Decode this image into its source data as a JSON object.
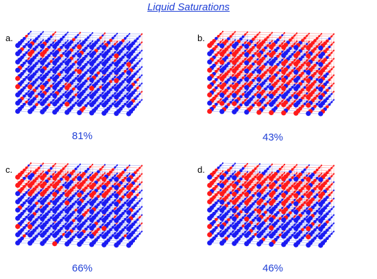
{
  "title": "Liquid Saturations",
  "colors": {
    "liquid": "#1b1bf2",
    "gas": "#ff1a1a",
    "line_blue": "#5a6cf0",
    "line_red": "#ff3030",
    "title": "#1f3fd6"
  },
  "panels": [
    {
      "label": "a.",
      "saturation": "81%",
      "liquid_fraction": 0.81,
      "distribution": "mostly-liquid"
    },
    {
      "label": "b.",
      "saturation": "43%",
      "liquid_fraction": 0.43,
      "distribution": "mixed-front"
    },
    {
      "label": "c.",
      "saturation": "66%",
      "liquid_fraction": 0.66,
      "distribution": "gas-top"
    },
    {
      "label": "d.",
      "saturation": "46%",
      "liquid_fraction": 0.46,
      "distribution": "gas-top-mixed"
    }
  ]
}
